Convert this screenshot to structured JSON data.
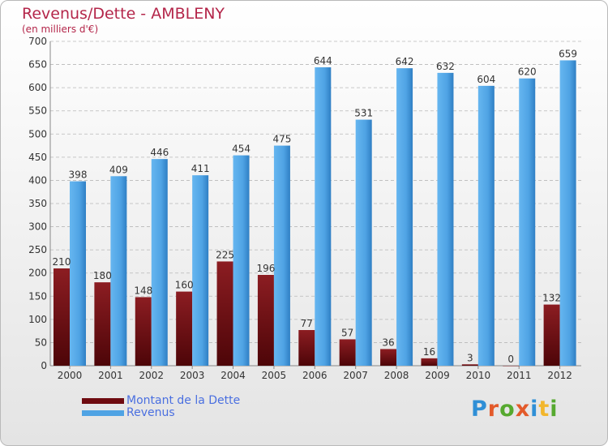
{
  "header": {
    "title": "Revenus/Dette - AMBLENY",
    "subtitle": "(en milliers d'€)"
  },
  "legend": {
    "items": [
      {
        "label": "Montant de la Dette",
        "color": "#6e0a0f"
      },
      {
        "label": "Revenus",
        "color": "#4fa3e4"
      }
    ]
  },
  "logo": {
    "text": "Proxiti",
    "letter_colors": [
      "#2f8fd6",
      "#e35a2a",
      "#56a92f",
      "#e35a2a",
      "#2f8fd6",
      "#f2b62c",
      "#56a92f"
    ]
  },
  "colors": {
    "title": "#b4264a",
    "axis_text": "#333333",
    "grid": "#b8b8b8"
  },
  "chart_data": {
    "type": "bar",
    "title": "Revenus/Dette - AMBLENY",
    "subtitle": "(en milliers d'€)",
    "categories": [
      "2000",
      "2001",
      "2002",
      "2003",
      "2004",
      "2005",
      "2006",
      "2007",
      "2008",
      "2009",
      "2010",
      "2011",
      "2012"
    ],
    "series": [
      {
        "name": "Montant de la Dette",
        "color": "#6e0a0f",
        "values": [
          210,
          180,
          148,
          160,
          225,
          196,
          77,
          57,
          36,
          16,
          3,
          0,
          132
        ]
      },
      {
        "name": "Revenus",
        "color": "#4fa3e4",
        "values": [
          398,
          409,
          446,
          411,
          454,
          475,
          644,
          531,
          642,
          632,
          604,
          620,
          659
        ]
      }
    ],
    "ylim": [
      0,
      700
    ],
    "yticks": [
      0,
      50,
      100,
      150,
      200,
      250,
      300,
      350,
      400,
      450,
      500,
      550,
      600,
      650,
      700
    ],
    "grid": true,
    "legend_position": "bottom-left"
  }
}
